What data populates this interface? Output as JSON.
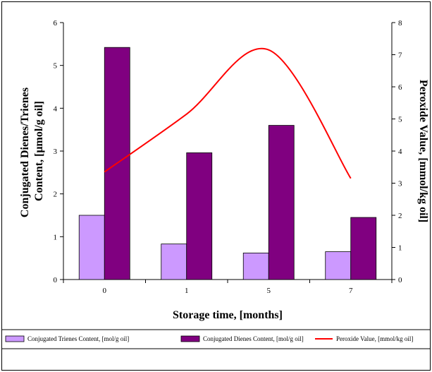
{
  "chart_data": {
    "type": "bar",
    "categories": [
      "0",
      "1",
      "5",
      "7"
    ],
    "xlabel": "Storage time, [months]",
    "ylabel_left": [
      "Conjugated Dienes/Trienes",
      "Content, [μmol/g oil]"
    ],
    "ylabel_right": "Peroxide Value, [mmol/kg oil]",
    "ylim_left": [
      0,
      6
    ],
    "ylim_right": [
      0,
      8
    ],
    "left_ticks": [
      "0",
      "1",
      "2",
      "3",
      "4",
      "5",
      "6"
    ],
    "right_ticks": [
      "0",
      "1",
      "2",
      "3",
      "4",
      "5",
      "6",
      "7",
      "8"
    ],
    "grid": false,
    "legend_position": "bottom",
    "series": [
      {
        "name": "Conjugated Trienes Content, [mol/g oil]",
        "type": "bar",
        "axis": "left",
        "color": "#cc99ff",
        "values": [
          1.5,
          0.83,
          0.62,
          0.65
        ]
      },
      {
        "name": "Conjugated Dienes Content, [mol/g oil]",
        "type": "bar",
        "axis": "left",
        "color": "#800080",
        "values": [
          5.42,
          2.96,
          3.6,
          1.45
        ]
      },
      {
        "name": "Peroxide Value, [mmol/kg oil]",
        "type": "line",
        "axis": "right",
        "color": "#ff0000",
        "values": [
          3.35,
          5.15,
          7.15,
          3.15
        ]
      }
    ]
  }
}
